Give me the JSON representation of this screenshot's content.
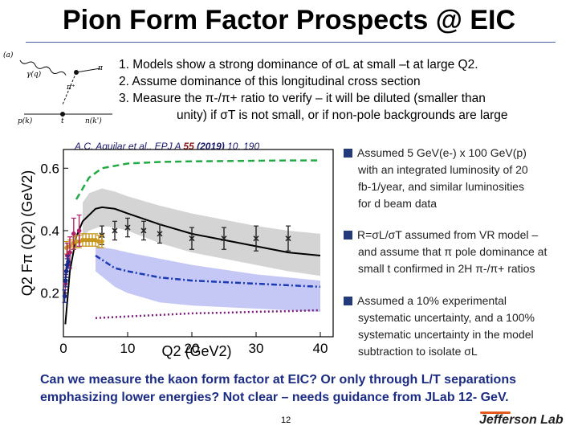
{
  "slide": {
    "title": "Pion Form Factor Prospects @ EIC",
    "page_number": "12",
    "logo_text": "Jefferson Lab"
  },
  "diagram": {
    "panel_label": "(a)",
    "labels": [
      "γ(q)",
      "π",
      "π⁺",
      "p(k)",
      "t",
      "n(k')"
    ]
  },
  "points": [
    "1. Models show a strong dominance of σL at small –t at large Q2.",
    "2. Assume dominance of this longitudinal cross section",
    "3. Measure the π-/π+ ratio to verify – it will be diluted (smaller than",
    "unity) if σT is not small, or if non-pole backgrounds are large"
  ],
  "citation": {
    "text": "A.C. Aguilar et al., EPJ A ",
    "volume": "55",
    "year": "(2019)",
    "rest": " 10, 190"
  },
  "bullets": [
    {
      "lines": [
        "Assumed 5 GeV(e-) x 100 GeV(p)",
        "with an integrated luminosity of 20",
        "fb-1/year, and similar luminosities",
        "for d beam data"
      ]
    },
    {
      "lines": [
        "R=σL/σT assumed from VR model –",
        "and assume that π pole dominance at",
        "small t confirmed in 2H π-/π+ ratios"
      ]
    },
    {
      "lines": [
        "Assumed a 10% experimental",
        "systematic uncertainty, and a 100%",
        "systematic uncertainty in the model",
        "subtraction to isolate σL"
      ]
    }
  ],
  "question": [
    "Can we measure the kaon form factor at EIC? Or only through L/T separations",
    "emphasizing lower energies? Not clear – needs guidance from JLab 12- GeV."
  ],
  "chart_data": {
    "type": "line",
    "xlabel": "Q2 (GeV2)",
    "ylabel": "Q2 Fπ (Q2) (GeV2)",
    "xlim": [
      0,
      42
    ],
    "ylim": [
      0.06,
      0.66
    ],
    "xticks": [
      "0",
      "10",
      "20",
      "30",
      "40"
    ],
    "yticks": [
      "0.2",
      "0.4",
      "0.6"
    ],
    "grid": false,
    "series": [
      {
        "style": "black-solid",
        "color": "#000000",
        "x": [
          0.3,
          1,
          2,
          3,
          4,
          5,
          6,
          8,
          10,
          15,
          20,
          25,
          30,
          35,
          40
        ],
        "y": [
          0.1,
          0.27,
          0.38,
          0.43,
          0.45,
          0.47,
          0.475,
          0.47,
          0.455,
          0.42,
          0.39,
          0.37,
          0.35,
          0.33,
          0.32
        ]
      },
      {
        "style": "gray-band",
        "color": "#c9c9c9",
        "x": [
          3,
          4,
          6,
          8,
          10,
          15,
          20,
          25,
          30,
          35,
          40
        ],
        "upper": [
          0.49,
          0.52,
          0.535,
          0.525,
          0.51,
          0.48,
          0.455,
          0.435,
          0.415,
          0.4,
          0.39
        ],
        "lower": [
          0.38,
          0.4,
          0.415,
          0.41,
          0.4,
          0.36,
          0.33,
          0.31,
          0.29,
          0.27,
          0.255
        ]
      },
      {
        "style": "blue-band",
        "color": "#b7b9f2",
        "x": [
          5,
          8,
          10,
          15,
          20,
          25,
          30,
          35,
          40
        ],
        "upper": [
          0.35,
          0.34,
          0.33,
          0.31,
          0.29,
          0.275,
          0.26,
          0.25,
          0.24
        ],
        "lower": [
          0.27,
          0.22,
          0.2,
          0.17,
          0.16,
          0.155,
          0.15,
          0.145,
          0.14
        ]
      },
      {
        "style": "green-dashed",
        "color": "#22aa44",
        "x": [
          2,
          4,
          6,
          10,
          15,
          20,
          25,
          30,
          35,
          40
        ],
        "y": [
          0.5,
          0.57,
          0.6,
          0.615,
          0.62,
          0.622,
          0.623,
          0.624,
          0.625,
          0.625
        ]
      },
      {
        "style": "blue-dashdot",
        "color": "#1a3bb5",
        "x": [
          5,
          8,
          10,
          15,
          20,
          25,
          30,
          35,
          40
        ],
        "y": [
          0.32,
          0.28,
          0.27,
          0.25,
          0.24,
          0.235,
          0.23,
          0.225,
          0.22
        ]
      },
      {
        "style": "purple-dotted",
        "color": "#7a1a7a",
        "x": [
          5,
          10,
          15,
          20,
          25,
          30,
          35,
          40
        ],
        "y": [
          0.12,
          0.125,
          0.13,
          0.135,
          0.137,
          0.14,
          0.142,
          0.145
        ]
      },
      {
        "style": "projected-points",
        "color": "#222222",
        "x": [
          6,
          8,
          10,
          12.5,
          15,
          20,
          25,
          30,
          35
        ],
        "y": [
          0.385,
          0.4,
          0.41,
          0.4,
          0.39,
          0.375,
          0.375,
          0.375,
          0.375
        ],
        "err": [
          0.03,
          0.03,
          0.03,
          0.03,
          0.03,
          0.035,
          0.035,
          0.04,
          0.04
        ]
      },
      {
        "style": "orange-points",
        "color": "#c8961e",
        "x": [
          0.5,
          1,
          1.5,
          2,
          2.5,
          3,
          3.5,
          4,
          4.5,
          5,
          5.5,
          6
        ],
        "y": [
          0.345,
          0.35,
          0.36,
          0.365,
          0.365,
          0.37,
          0.37,
          0.37,
          0.37,
          0.37,
          0.365,
          0.365
        ],
        "err": [
          0.02,
          0.02,
          0.02,
          0.02,
          0.02,
          0.02,
          0.02,
          0.02,
          0.02,
          0.02,
          0.02,
          0.02
        ]
      },
      {
        "style": "magenta-points",
        "color": "#b0226a",
        "x": [
          0.3,
          0.6,
          1.0,
          1.6,
          2.45
        ],
        "y": [
          0.23,
          0.32,
          0.33,
          0.39,
          0.4
        ],
        "err": [
          0.04,
          0.04,
          0.05,
          0.05,
          0.05
        ]
      },
      {
        "style": "blue-points",
        "color": "#1a2a8a",
        "x": [
          0.2,
          0.35,
          0.45,
          0.6,
          0.75
        ],
        "y": [
          0.19,
          0.24,
          0.27,
          0.29,
          0.3
        ],
        "err": [
          0.02,
          0.02,
          0.02,
          0.02,
          0.02
        ]
      }
    ]
  }
}
